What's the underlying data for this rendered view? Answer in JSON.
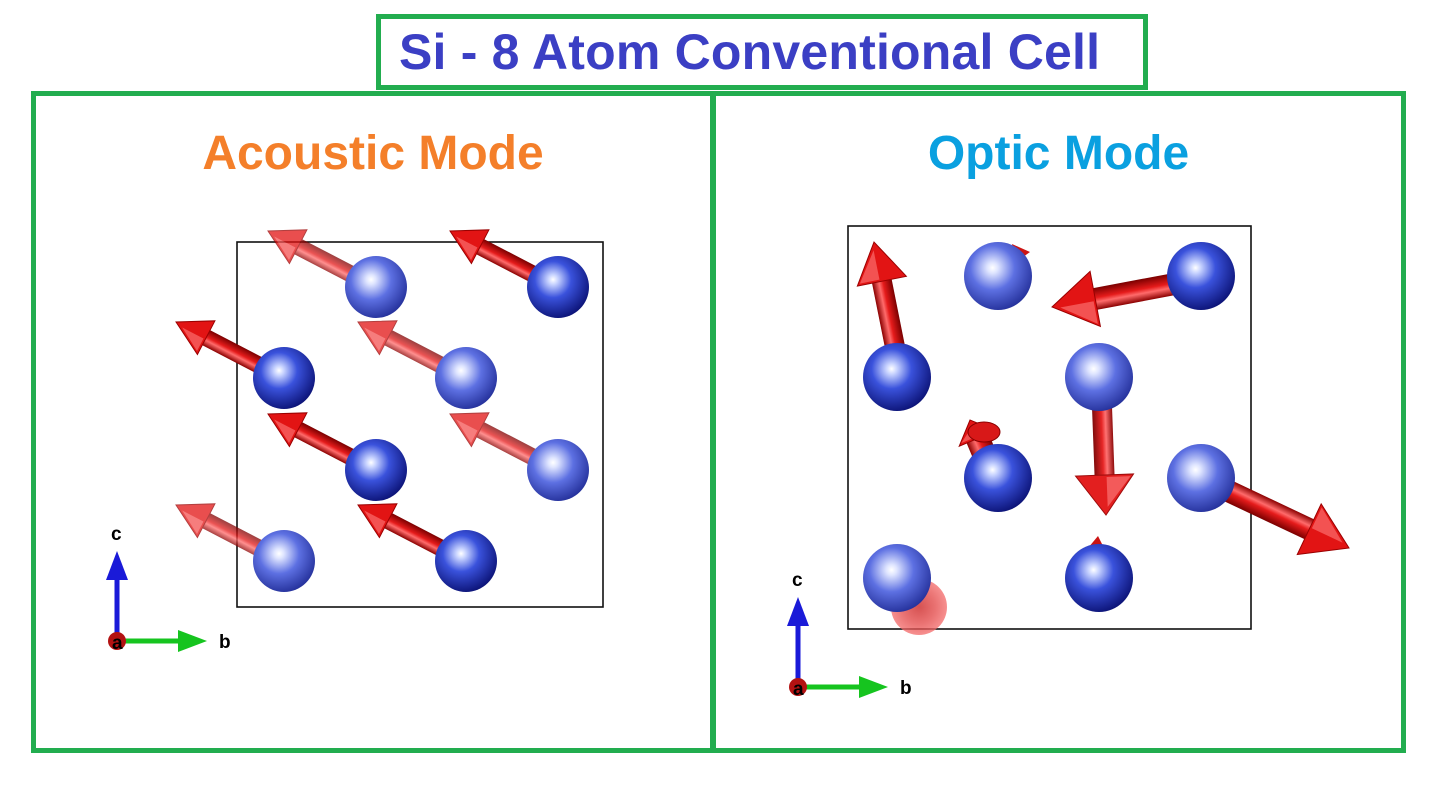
{
  "title": "Si - 8 Atom Conventional Cell",
  "panels": [
    {
      "title": "Acoustic Mode",
      "title_color": "#f47f2a"
    },
    {
      "title": "Optic Mode",
      "title_color": "#0aa0e0"
    }
  ],
  "axes_labels": {
    "a": "a",
    "b": "b",
    "c": "c"
  },
  "colors": {
    "title": "#3b3fc4",
    "frame": "#22ad4f",
    "atom": "#2a3ec9",
    "arrow": "#dd1111",
    "axis_a": "#b31212",
    "axis_b": "#16c41f",
    "axis_c": "#1a1ad8"
  }
}
